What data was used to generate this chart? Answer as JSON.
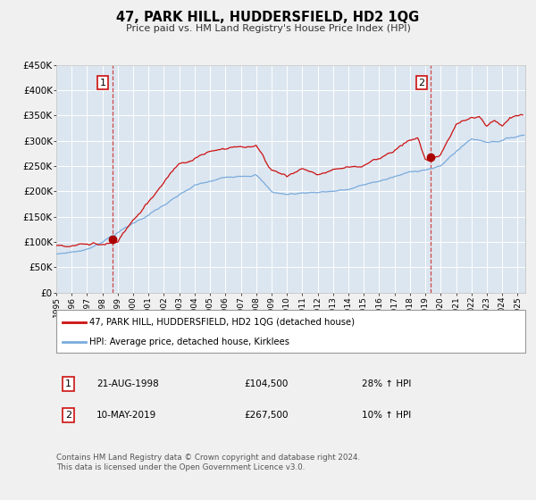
{
  "title": "47, PARK HILL, HUDDERSFIELD, HD2 1QG",
  "subtitle": "Price paid vs. HM Land Registry's House Price Index (HPI)",
  "xmin": 1995.0,
  "xmax": 2025.5,
  "ymin": 0,
  "ymax": 450000,
  "yticks": [
    0,
    50000,
    100000,
    150000,
    200000,
    250000,
    300000,
    350000,
    400000,
    450000
  ],
  "ytick_labels": [
    "£0",
    "£50K",
    "£100K",
    "£150K",
    "£200K",
    "£250K",
    "£300K",
    "£350K",
    "£400K",
    "£450K"
  ],
  "xtick_years": [
    1995,
    1996,
    1997,
    1998,
    1999,
    2000,
    2001,
    2002,
    2003,
    2004,
    2005,
    2006,
    2007,
    2008,
    2009,
    2010,
    2011,
    2012,
    2013,
    2014,
    2015,
    2016,
    2017,
    2018,
    2019,
    2020,
    2021,
    2022,
    2023,
    2024,
    2025
  ],
  "sale1_x": 1998.64,
  "sale1_y": 104500,
  "sale1_label": "1",
  "sale1_date": "21-AUG-1998",
  "sale1_price": "£104,500",
  "sale1_hpi": "28% ↑ HPI",
  "sale2_x": 2019.36,
  "sale2_y": 267500,
  "sale2_label": "2",
  "sale2_date": "10-MAY-2019",
  "sale2_price": "£267,500",
  "sale2_hpi": "10% ↑ HPI",
  "hpi_line_color": "#7aabdd",
  "property_line_color": "#cc1111",
  "vline_color": "#cc3333",
  "dot_color": "#aa0000",
  "background_plot": "#dce6f0",
  "background_fig": "#f0f0f0",
  "grid_color": "#ffffff",
  "legend_entry1": "47, PARK HILL, HUDDERSFIELD, HD2 1QG (detached house)",
  "legend_entry2": "HPI: Average price, detached house, Kirklees",
  "footer": "Contains HM Land Registry data © Crown copyright and database right 2024.\nThis data is licensed under the Open Government Licence v3.0."
}
